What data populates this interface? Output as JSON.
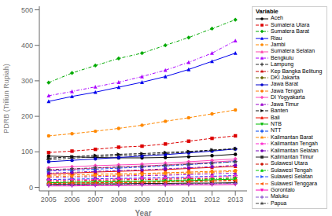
{
  "chart_data": {
    "type": "line",
    "xlabel": "Year",
    "ylabel": "PDRB (Triliun Rupiah)",
    "legend_title": "Variable",
    "legend": "right",
    "grid": false,
    "x": [
      2005,
      2006,
      2007,
      2008,
      2009,
      2010,
      2011,
      2012,
      2013
    ],
    "xlim": [
      2004.6,
      2013.5
    ],
    "xticks": [
      2005,
      2006,
      2007,
      2008,
      2009,
      2010,
      2011,
      2012,
      2013
    ],
    "ylim": [
      -10,
      510
    ],
    "yticks": [
      0,
      100,
      200,
      300,
      400,
      500
    ],
    "series": [
      {
        "name": "Aceh",
        "color": "#000000",
        "line_style": "solid",
        "marker": "circle",
        "values": [
          88,
          86,
          84,
          83,
          83,
          84,
          86,
          89,
          93
        ]
      },
      {
        "name": "Sumatera Utara",
        "color": "#dd0000",
        "line_style": "dashed",
        "marker": "square",
        "values": [
          98,
          102,
          107,
          113,
          116,
          122,
          130,
          138,
          145
        ]
      },
      {
        "name": "Sumatera Barat",
        "color": "#00aa00",
        "line_style": "dashdot",
        "marker": "diamond",
        "values": [
          295,
          322,
          343,
          363,
          378,
          400,
          422,
          447,
          472
        ]
      },
      {
        "name": "Riau",
        "color": "#0000ee",
        "line_style": "solid",
        "marker": "triangle-up",
        "values": [
          242,
          256,
          268,
          282,
          296,
          312,
          332,
          355,
          378
        ]
      },
      {
        "name": "Jambi",
        "color": "#ff8800",
        "line_style": "dashed",
        "marker": "circle",
        "values": [
          145,
          151,
          158,
          166,
          175,
          186,
          196,
          207,
          218
        ]
      },
      {
        "name": "Sumatera Selatan",
        "color": "#ff44aa",
        "line_style": "solid",
        "marker": "triangle-up",
        "values": [
          48,
          51,
          54,
          57,
          60,
          63,
          67,
          71,
          75
        ]
      },
      {
        "name": "Bengkulu",
        "color": "#aa00ff",
        "line_style": "dashdot",
        "marker": "triangle-up",
        "values": [
          258,
          270,
          283,
          296,
          312,
          330,
          352,
          378,
          413
        ]
      },
      {
        "name": "Lampung",
        "color": "#333333",
        "line_style": "dashed",
        "marker": "plus",
        "values": [
          78,
          82,
          86,
          89,
          91,
          95,
          99,
          104,
          108
        ]
      },
      {
        "name": "Kep Bangka Belitung",
        "color": "#cc0000",
        "line_style": "dashdot",
        "marker": "star",
        "values": [
          18,
          19,
          20,
          21,
          22,
          23,
          24,
          25,
          27
        ]
      },
      {
        "name": "DKI Jakarta",
        "color": "#666600",
        "line_style": "dashdot",
        "marker": "diamond",
        "values": [
          7,
          8,
          8,
          9,
          9,
          10,
          10,
          11,
          12
        ]
      },
      {
        "name": "Jawa Barat",
        "color": "#0000cc",
        "line_style": "solid",
        "marker": "circle",
        "values": [
          72,
          76,
          80,
          84,
          88,
          92,
          97,
          102,
          108
        ]
      },
      {
        "name": "Jawa Tengah",
        "color": "#ff7700",
        "line_style": "dashed",
        "marker": "circle",
        "values": [
          34,
          35,
          37,
          38,
          39,
          41,
          43,
          45,
          47
        ]
      },
      {
        "name": "DI Yogyakarta",
        "color": "#ff44bb",
        "line_style": "solid",
        "marker": "diamond",
        "values": [
          55,
          58,
          61,
          63,
          65,
          68,
          72,
          76,
          80
        ]
      },
      {
        "name": "Jawa Timur",
        "color": "#9900cc",
        "line_style": "dashdot",
        "marker": "triangle-up",
        "values": [
          28,
          29,
          30,
          32,
          33,
          34,
          36,
          38,
          40
        ]
      },
      {
        "name": "Banten",
        "color": "#111111",
        "line_style": "dashed",
        "marker": "triangle-right",
        "values": [
          82,
          86,
          90,
          93,
          95,
          98,
          101,
          105,
          109
        ]
      },
      {
        "name": "Bali",
        "color": "#ee1100",
        "line_style": "solid",
        "marker": "triangle-up",
        "values": [
          38,
          40,
          43,
          45,
          47,
          50,
          53,
          56,
          59
        ]
      },
      {
        "name": "NTB",
        "color": "#00bb00",
        "line_style": "solid",
        "marker": "triangle-down",
        "values": [
          13,
          14,
          15,
          16,
          17,
          18,
          19,
          21,
          23
        ]
      },
      {
        "name": "NTT",
        "color": "#0044ee",
        "line_style": "dashed",
        "marker": "plus",
        "values": [
          22,
          23,
          24,
          25,
          26,
          27,
          29,
          31,
          33
        ]
      },
      {
        "name": "Kalimantan Barat",
        "color": "#ff8800",
        "line_style": "dashdot",
        "marker": "star",
        "values": [
          30,
          31,
          33,
          34,
          36,
          38,
          40,
          42,
          45
        ]
      },
      {
        "name": "Kalimantan Tengah",
        "color": "#ff22cc",
        "line_style": "dashdot",
        "marker": "star",
        "values": [
          20,
          21,
          22,
          24,
          25,
          26,
          28,
          30,
          32
        ]
      },
      {
        "name": "Kalimantan Selatan",
        "color": "#7700bb",
        "line_style": "dashdot",
        "marker": "circle",
        "values": [
          40,
          42,
          45,
          47,
          49,
          52,
          55,
          58,
          62
        ]
      },
      {
        "name": "Kalimantan Timur",
        "color": "#222222",
        "line_style": "solid",
        "marker": "square",
        "values": [
          9,
          9,
          10,
          10,
          11,
          11,
          12,
          12,
          13
        ]
      },
      {
        "name": "Sulawesi Utara",
        "color": "#cc1100",
        "line_style": "dashed",
        "marker": "circle",
        "values": [
          11,
          12,
          13,
          14,
          14,
          15,
          17,
          18,
          20
        ]
      },
      {
        "name": "Sulawesi Tengah",
        "color": "#00cc00",
        "line_style": "dashdot",
        "marker": "triangle-up",
        "values": [
          14,
          15,
          16,
          17,
          18,
          19,
          21,
          23,
          26
        ]
      },
      {
        "name": "Sulawesi Selatan",
        "color": "#2255ff",
        "line_style": "dashed",
        "marker": "triangle-right",
        "values": [
          46,
          48,
          51,
          54,
          57,
          60,
          64,
          68,
          73
        ]
      },
      {
        "name": "Sulawesi Tenggara",
        "color": "#ff5500",
        "line_style": "dashed",
        "marker": "triangle-left",
        "values": [
          11,
          12,
          12,
          13,
          14,
          15,
          16,
          17,
          19
        ]
      },
      {
        "name": "Gorontalo",
        "color": "#ff00bb",
        "line_style": "solid",
        "marker": "triangle-down",
        "values": [
          4,
          4,
          5,
          5,
          6,
          6,
          7,
          7,
          8
        ]
      },
      {
        "name": "Maluku",
        "color": "#8855cc",
        "line_style": "dashed",
        "marker": "plus",
        "values": [
          6,
          6,
          7,
          7,
          8,
          8,
          9,
          10,
          11
        ]
      },
      {
        "name": "Papua",
        "color": "#444444",
        "line_style": "dashdot",
        "marker": "star",
        "values": [
          50,
          52,
          55,
          57,
          59,
          62,
          65,
          68,
          72
        ]
      }
    ]
  }
}
